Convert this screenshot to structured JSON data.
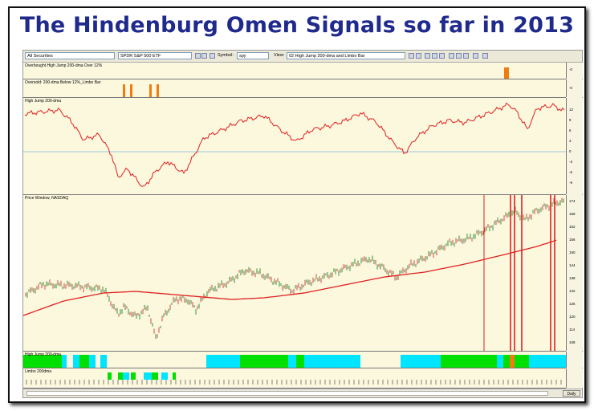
{
  "title": "The Hindenburg Omen Signals so far in 2013",
  "toolbar": {
    "list": "All Securities",
    "security": "SPDR S&P 500 ETF",
    "symbol_label": "Symbol:",
    "symbol_value": "spy",
    "view_label": "View:",
    "view_value": "02 High Jump 200-dma and Limbo Bar"
  },
  "panes": {
    "overbought": {
      "label": "Overbought High Jump 200-dma Over 12%",
      "axis": [
        "-0"
      ]
    },
    "oversold": {
      "label": "Oversold: 200-dma Below 12%_Limbo Bar",
      "axis": [
        "-0"
      ]
    },
    "highjump": {
      "label": "High Jump 200-dma",
      "axis": [
        "12",
        "9",
        "6",
        "3",
        "0",
        "-3",
        "-6",
        "-9"
      ]
    },
    "price": {
      "label": "Price Window, NASDAQ",
      "axis": [
        "174",
        "168",
        "162",
        "156",
        "150",
        "144",
        "138",
        "132",
        "126",
        "120",
        "114",
        "108"
      ]
    },
    "hjbar": {
      "label": "High Jump 200-dma"
    },
    "limbo": {
      "label": "Limbo 200dma"
    }
  },
  "status": {
    "period": "Daily"
  },
  "colors": {
    "title": "#1f2a8c",
    "price": "#2e7d32",
    "ma": "#e02020",
    "signal": "#e02020",
    "green": "#00e000",
    "cyan": "#00e5ff",
    "orange": "#f07c10"
  }
}
